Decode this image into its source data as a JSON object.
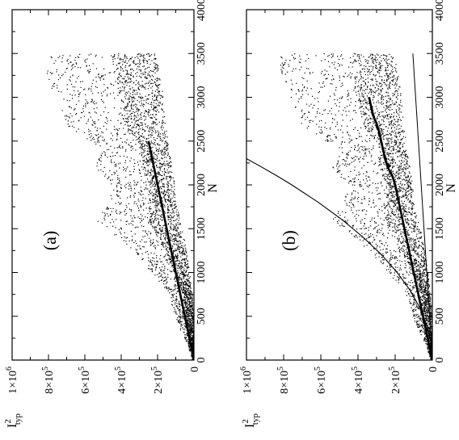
{
  "chart_data": [
    {
      "type": "scatter",
      "panel_label": "(a)",
      "xlabel": "N",
      "ylabel": "I",
      "ylabel_superscript": "2",
      "ylabel_subscript": "typ",
      "xlim": [
        0,
        4000
      ],
      "ylim": [
        0,
        1000000
      ],
      "x_ticks": [
        "0",
        "500",
        "1000",
        "1500",
        "2000",
        "2500",
        "3000",
        "3500",
        "4000"
      ],
      "y_ticks": [
        {
          "mantissa": "0",
          "exp": ""
        },
        {
          "mantissa": "2×10",
          "exp": "5"
        },
        {
          "mantissa": "4×10",
          "exp": "5"
        },
        {
          "mantissa": "6×10",
          "exp": "5"
        },
        {
          "mantissa": "8×10",
          "exp": "5"
        },
        {
          "mantissa": "1×10",
          "exp": "6"
        }
      ],
      "series": [
        {
          "kind": "scatter-envelope",
          "x": [
            0,
            200,
            400,
            600,
            800,
            1000,
            1200,
            1400,
            1600,
            1800,
            2000,
            2200,
            2400,
            2600,
            2700,
            2800,
            3000,
            3200,
            3400,
            3500
          ],
          "y_low": [
            0,
            0,
            0,
            5000,
            15000,
            25000,
            40000,
            55000,
            80000,
            95000,
            110000,
            120000,
            140000,
            150000,
            160000,
            160000,
            170000,
            180000,
            200000,
            220000
          ],
          "y_high": [
            10000,
            40000,
            90000,
            120000,
            150000,
            240000,
            320000,
            420000,
            540000,
            480000,
            450000,
            550000,
            500000,
            640000,
            720000,
            720000,
            770000,
            800000,
            830000,
            820000
          ]
        },
        {
          "kind": "line",
          "x": [
            0,
            100,
            200,
            300,
            400,
            500,
            600,
            700,
            800,
            900,
            1000,
            1100,
            1200,
            1300,
            1400,
            1500,
            1600,
            1700,
            1800,
            1900,
            2000,
            2100,
            2200,
            2300,
            2400,
            2500
          ],
          "y": [
            0,
            10000,
            20000,
            30000,
            40000,
            50000,
            60000,
            70000,
            80000,
            90000,
            100000,
            110000,
            120000,
            130000,
            140000,
            150000,
            160000,
            170000,
            180000,
            190000,
            200000,
            210000,
            220000,
            230000,
            240000,
            250000
          ]
        }
      ]
    },
    {
      "type": "scatter",
      "panel_label": "(b)",
      "xlabel": "N",
      "ylabel": "I",
      "ylabel_superscript": "2",
      "ylabel_subscript": "typ",
      "xlim": [
        0,
        4000
      ],
      "ylim": [
        0,
        1000000
      ],
      "x_ticks": [
        "0",
        "500",
        "1000",
        "1500",
        "2000",
        "2500",
        "3000",
        "3500",
        "4000"
      ],
      "y_ticks": [
        {
          "mantissa": "0",
          "exp": ""
        },
        {
          "mantissa": "2×10",
          "exp": "5"
        },
        {
          "mantissa": "4×10",
          "exp": "5"
        },
        {
          "mantissa": "6×10",
          "exp": "5"
        },
        {
          "mantissa": "8×10",
          "exp": "5"
        },
        {
          "mantissa": "1×10",
          "exp": "6"
        }
      ],
      "series": [
        {
          "kind": "scatter-envelope",
          "x": [
            0,
            200,
            400,
            600,
            800,
            1000,
            1200,
            1400,
            1600,
            1800,
            2000,
            2200,
            2400,
            2600,
            2700,
            2800,
            3000,
            3200,
            3400,
            3500
          ],
          "y_low": [
            0,
            0,
            0,
            5000,
            15000,
            25000,
            40000,
            55000,
            80000,
            95000,
            110000,
            120000,
            140000,
            150000,
            160000,
            160000,
            170000,
            180000,
            200000,
            220000
          ],
          "y_high": [
            10000,
            40000,
            90000,
            120000,
            150000,
            240000,
            320000,
            420000,
            540000,
            480000,
            450000,
            550000,
            500000,
            640000,
            720000,
            720000,
            770000,
            800000,
            830000,
            820000
          ]
        },
        {
          "kind": "line",
          "x": [
            0,
            200,
            400,
            600,
            800,
            1000,
            1200,
            1400,
            1600,
            1800,
            2000,
            2100,
            2200,
            2300,
            2400,
            2500,
            2600,
            2700,
            2800,
            2900,
            3000
          ],
          "y": [
            0,
            20000,
            40000,
            60000,
            80000,
            100000,
            120000,
            140000,
            160000,
            180000,
            200000,
            215000,
            240000,
            255000,
            265000,
            275000,
            285000,
            300000,
            320000,
            330000,
            340000
          ]
        },
        {
          "kind": "dashed-line",
          "x": [
            2200,
            2300,
            2400,
            2500,
            2600,
            2700,
            2800,
            2900,
            3000
          ],
          "y": [
            230000,
            250000,
            265000,
            278000,
            290000,
            305000,
            318000,
            330000,
            345000
          ]
        },
        {
          "kind": "thin-line",
          "x": [
            0,
            3500
          ],
          "y": [
            0,
            105000
          ]
        },
        {
          "kind": "curve",
          "x": [
            0,
            200,
            400,
            600,
            800,
            1000,
            1200,
            1400,
            1600,
            1800,
            2000,
            2100,
            2200,
            2300
          ],
          "y": [
            0,
            7500,
            30000,
            68000,
            121000,
            189000,
            272000,
            371000,
            484000,
            613000,
            756000,
            834000,
            915000,
            1000000
          ]
        }
      ]
    }
  ]
}
